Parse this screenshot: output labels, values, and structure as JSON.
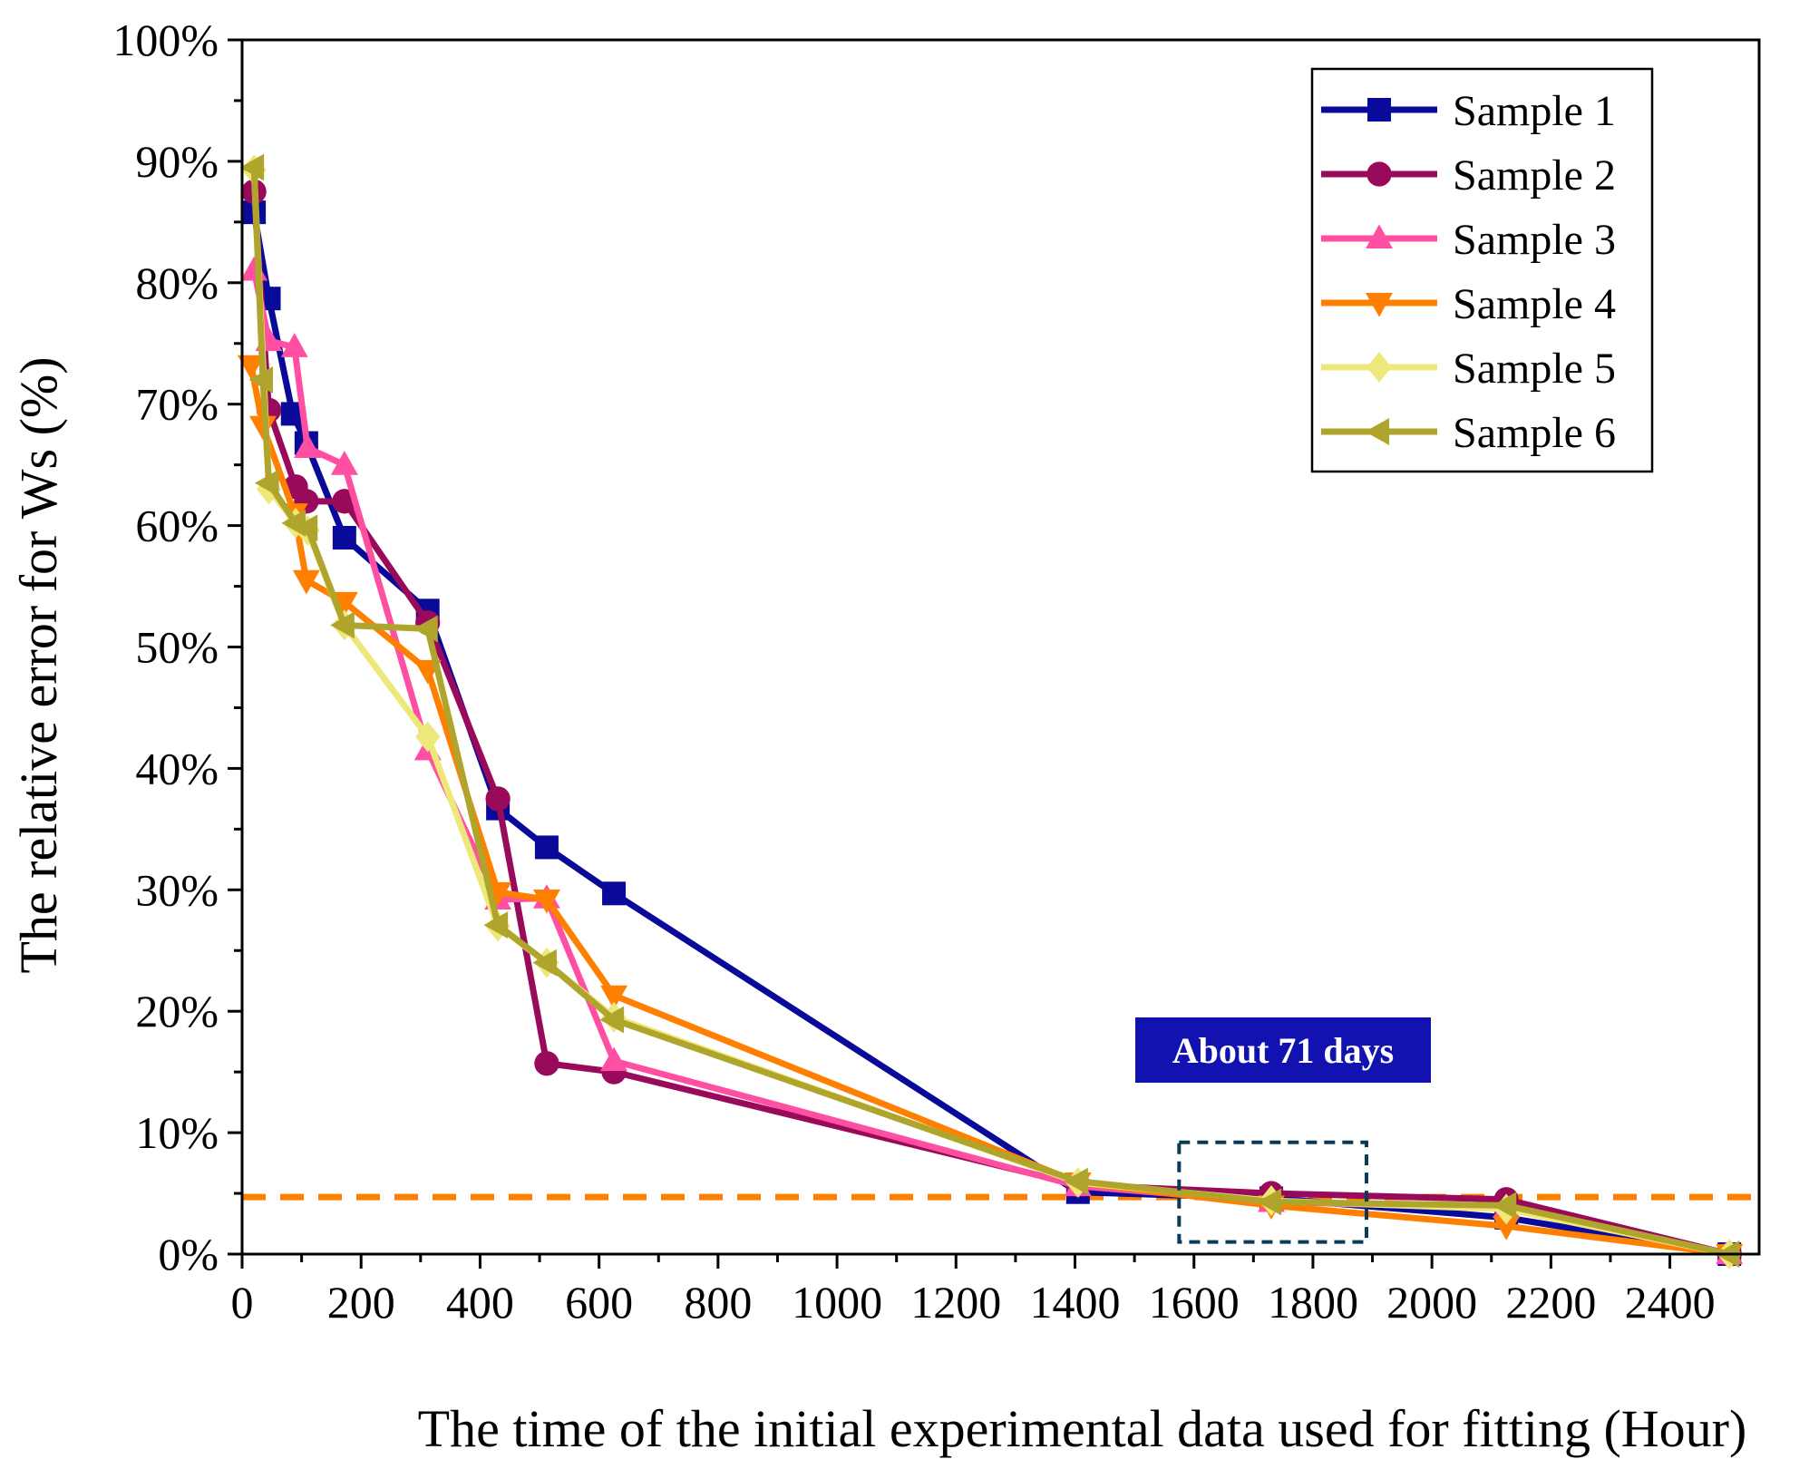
{
  "chart_data": {
    "type": "line",
    "title": "",
    "xlabel": "The time of the initial experimental data used for fitting (Hour)",
    "ylabel": "The relative error for Ws (%)",
    "xlim": [
      0,
      2550
    ],
    "ylim": [
      0,
      100
    ],
    "xticks": [
      0,
      200,
      400,
      600,
      800,
      1000,
      1200,
      1400,
      1600,
      1800,
      2000,
      2200,
      2400
    ],
    "xtick_labels": [
      "0",
      "200",
      "400",
      "600",
      "800",
      "1000",
      "1200",
      "1400",
      "1600",
      "1800",
      "2000",
      "2200",
      "2400"
    ],
    "yticks": [
      0,
      10,
      20,
      30,
      40,
      50,
      60,
      70,
      80,
      90,
      100
    ],
    "ytick_labels": [
      "0%",
      "10%",
      "20%",
      "30%",
      "40%",
      "50%",
      "60%",
      "70%",
      "80%",
      "90%",
      "100%"
    ],
    "grid": false,
    "legend_position": "top-right",
    "series": [
      {
        "name": "Sample 1",
        "color": "#0a0a9a",
        "marker": "square",
        "x": [
          20,
          45,
          85,
          108,
          172,
          312,
          430,
          512,
          625,
          1405,
          1730,
          2125,
          2500
        ],
        "y": [
          85.8,
          78.7,
          69.2,
          66.8,
          59.0,
          53.0,
          36.7,
          33.5,
          29.7,
          5.1,
          4.6,
          3.0,
          0
        ]
      },
      {
        "name": "Sample 2",
        "color": "#9a0a5a",
        "marker": "circle",
        "x": [
          20,
          45,
          90,
          108,
          172,
          312,
          430,
          512,
          625,
          1405,
          1730,
          2125,
          2500
        ],
        "y": [
          87.5,
          69.5,
          63.2,
          62.0,
          62.0,
          52.0,
          37.5,
          15.7,
          15.0,
          5.7,
          5.0,
          4.5,
          0
        ]
      },
      {
        "name": "Sample 3",
        "color": "#ff4fa3",
        "marker": "triangle-up",
        "x": [
          20,
          45,
          88,
          110,
          172,
          312,
          430,
          512,
          625,
          1405,
          1730,
          2125,
          2500
        ],
        "y": [
          81.0,
          75.2,
          74.7,
          66.4,
          65.0,
          41.5,
          29.2,
          29.3,
          15.9,
          5.6,
          4.3,
          3.8,
          0
        ]
      },
      {
        "name": "Sample 4",
        "color": "#ff8000",
        "marker": "triangle-down",
        "x": [
          15,
          35,
          88,
          108,
          172,
          312,
          430,
          512,
          625,
          1405,
          1730,
          2125,
          2500
        ],
        "y": [
          73.2,
          68.2,
          61.0,
          55.5,
          53.7,
          48.1,
          29.8,
          29.2,
          21.3,
          5.9,
          4.0,
          2.3,
          0
        ]
      },
      {
        "name": "Sample 5",
        "color": "#eee87a",
        "marker": "diamond",
        "x": [
          20,
          45,
          90,
          110,
          172,
          312,
          430,
          512,
          625,
          1405,
          1730,
          2125,
          2500
        ],
        "y": [
          89.3,
          63.0,
          60.2,
          59.6,
          51.8,
          42.6,
          27.0,
          24.0,
          19.5,
          5.9,
          4.4,
          3.7,
          0
        ]
      },
      {
        "name": "Sample 6",
        "color": "#b0a52c",
        "marker": "triangle-left",
        "x": [
          20,
          35,
          45,
          90,
          110,
          172,
          312,
          430,
          512,
          625,
          1405,
          1730,
          2125,
          2500
        ],
        "y": [
          89.5,
          72.0,
          63.5,
          60.2,
          59.8,
          51.8,
          51.5,
          27.1,
          24.0,
          19.3,
          6.0,
          4.3,
          4.0,
          0
        ]
      }
    ],
    "reference_line": {
      "y": 4.7,
      "color": "#ff8000",
      "style": "dashed"
    },
    "annotation": {
      "label": "About 71 days",
      "label_background": "#1212b0",
      "box_x": [
        1575,
        1890
      ],
      "box_y": [
        1.0,
        9.2
      ],
      "box_color": "#0a3a5a"
    }
  }
}
